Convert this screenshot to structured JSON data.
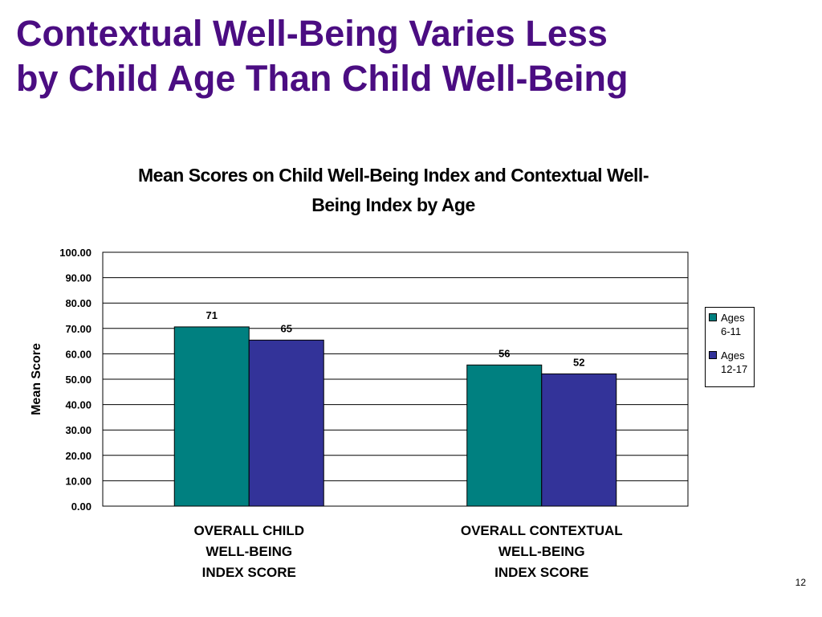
{
  "slide": {
    "title_lines": [
      "Contextual Well-Being Varies Less",
      "by Child Age Than Child Well-Being"
    ],
    "page_number": "12"
  },
  "colors": {
    "title": "#4b0d82",
    "series": [
      "#008080",
      "#333399"
    ]
  },
  "chart_data": {
    "type": "bar",
    "title_lines": [
      "Mean Scores on Child Well-Being Index and Contextual Well-",
      "Being Index by Age"
    ],
    "ylabel": "Mean Score",
    "xlabel": "",
    "ylim": [
      0,
      100
    ],
    "yticks": [
      "0.00",
      "10.00",
      "20.00",
      "30.00",
      "40.00",
      "50.00",
      "60.00",
      "70.00",
      "80.00",
      "90.00",
      "100.00"
    ],
    "categories": [
      [
        "OVERALL CHILD",
        "WELL-BEING",
        "INDEX SCORE"
      ],
      [
        "OVERALL CONTEXTUAL",
        "WELL-BEING",
        "INDEX SCORE"
      ]
    ],
    "series": [
      {
        "name": "Ages 6-11",
        "legend_lines": [
          "Ages",
          "6-11"
        ],
        "values": [
          70.6,
          55.6
        ],
        "labels": [
          "71",
          "56"
        ]
      },
      {
        "name": "Ages 12-17",
        "legend_lines": [
          "Ages",
          "12-17"
        ],
        "values": [
          65.4,
          52.1
        ],
        "labels": [
          "65",
          "52"
        ]
      }
    ],
    "grid": true,
    "legend_position": "right"
  }
}
